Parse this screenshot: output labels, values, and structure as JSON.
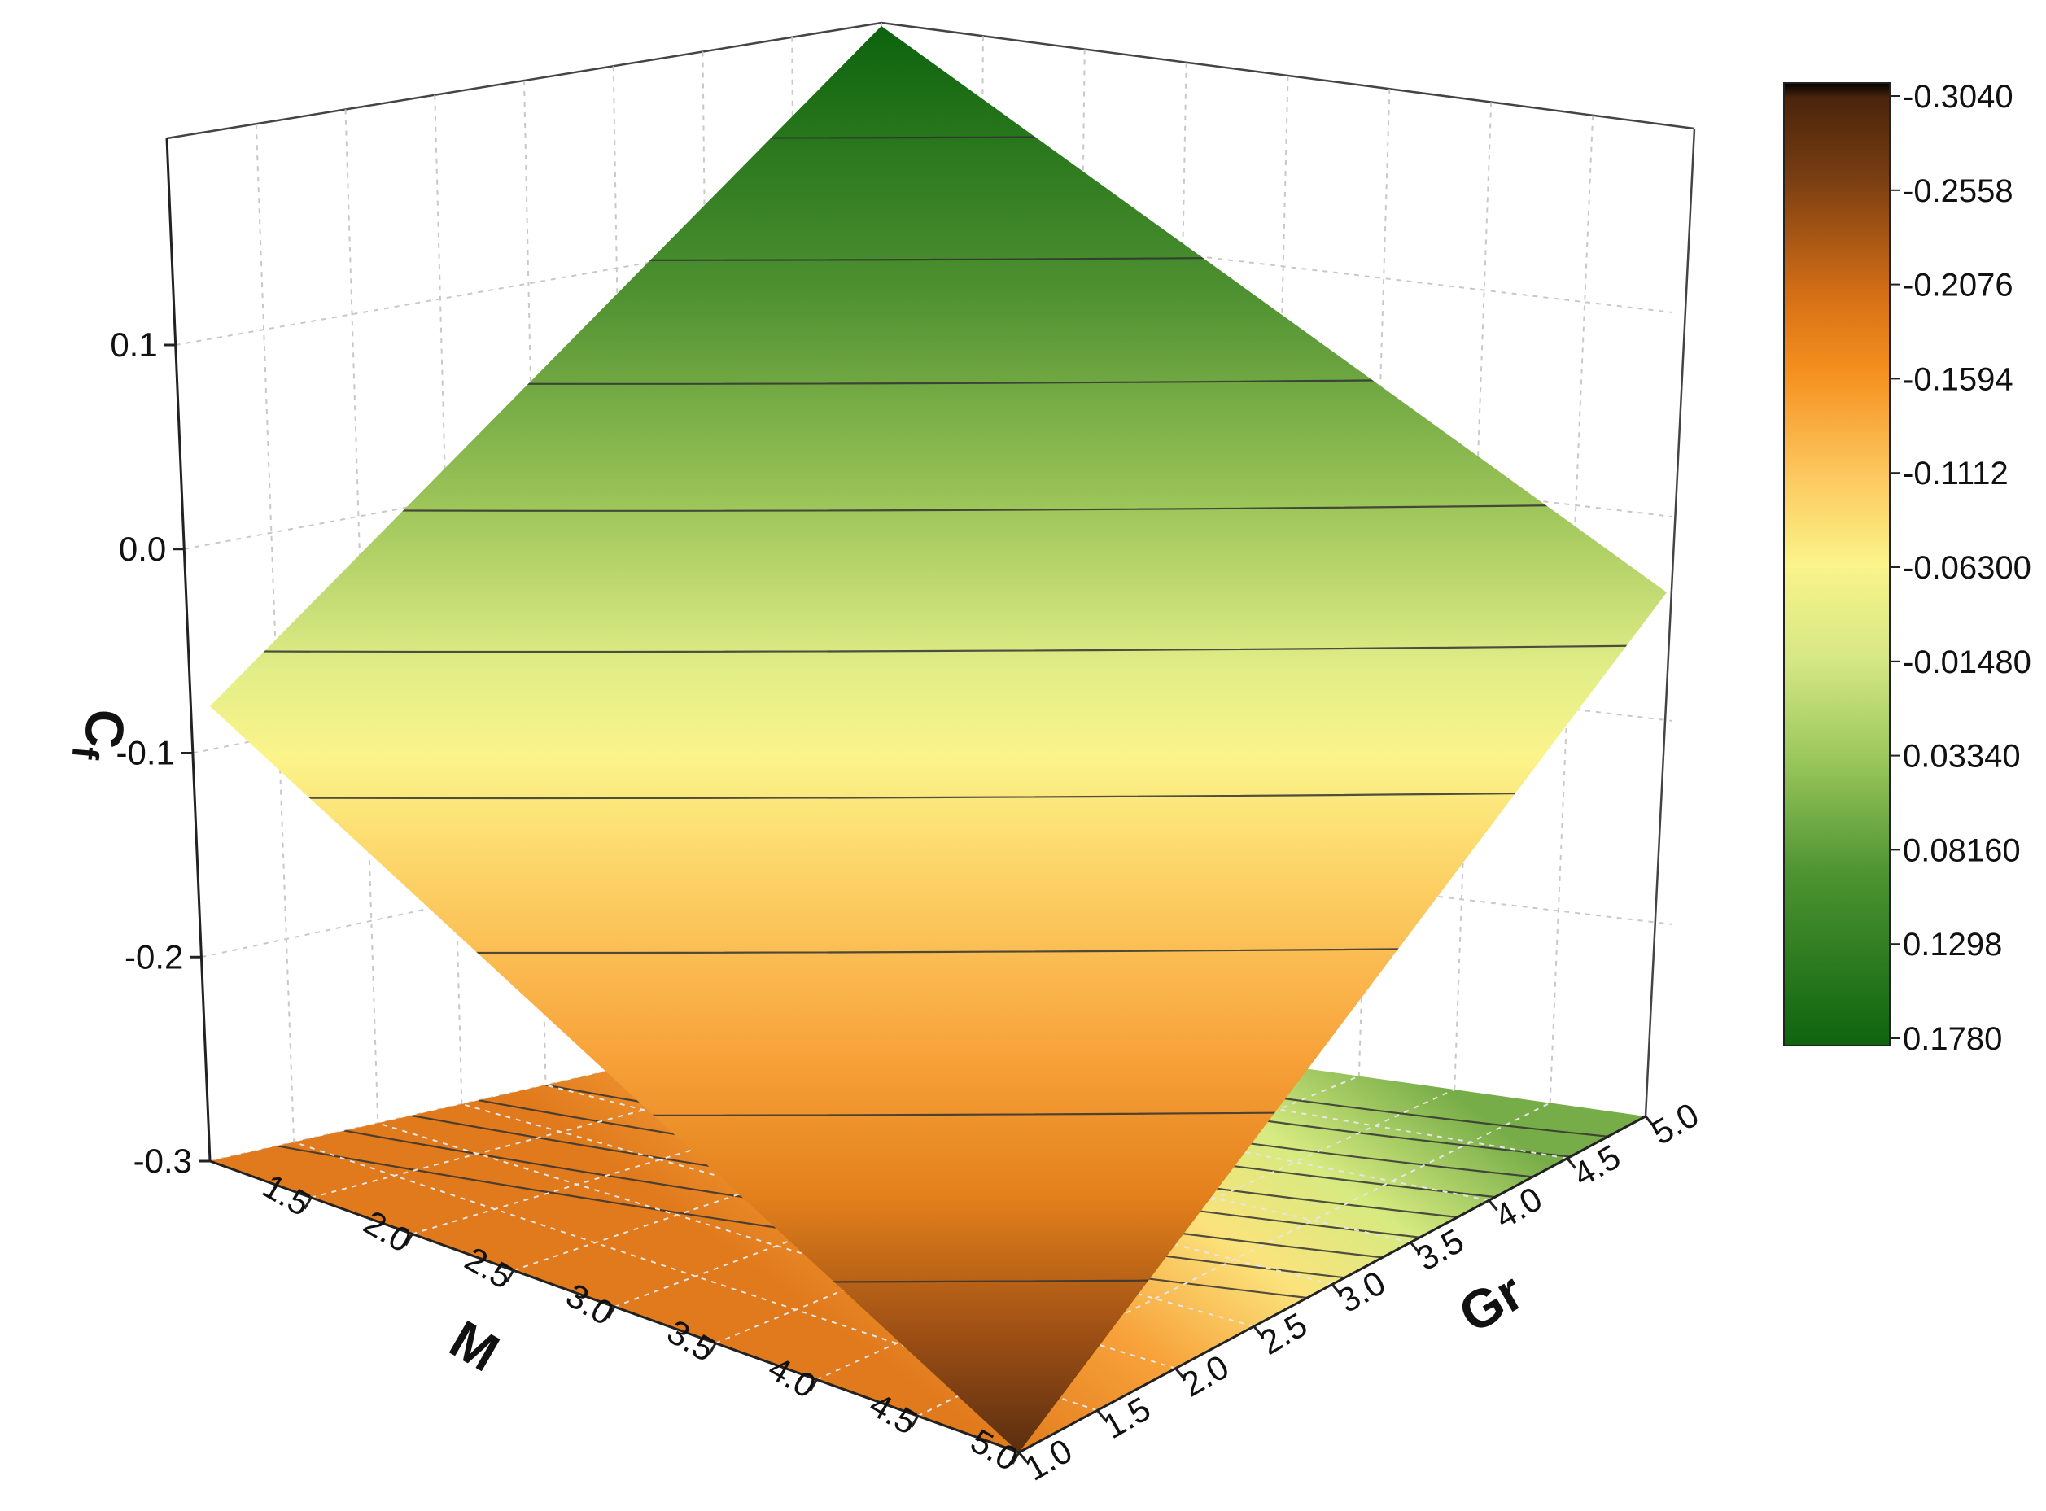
{
  "chart_data": {
    "type": "surface3d",
    "x_axis": {
      "label": "M",
      "ticks": [
        "1.5",
        "2.0",
        "2.5",
        "3.0",
        "3.5",
        "4.0",
        "4.5",
        "5.0"
      ]
    },
    "y_axis": {
      "label": "Gr",
      "ticks": [
        "1.0",
        "1.5",
        "2.0",
        "2.5",
        "3.0",
        "3.5",
        "4.0",
        "4.5",
        "5.0"
      ]
    },
    "z_axis": {
      "label": "C",
      "label_subscript": "f",
      "ticks": [
        "-0.3",
        "-0.2",
        "-0.1",
        "0.0",
        "0.1"
      ],
      "zlim": [
        -0.304,
        0.178
      ]
    },
    "surface": {
      "corners": [
        {
          "M": 5.0,
          "Gr": 1.0,
          "Cf": -0.304
        },
        {
          "M": 1.0,
          "Gr": 1.0,
          "Cf": -0.085
        },
        {
          "M": 5.0,
          "Gr": 5.0,
          "Cf": -0.06
        },
        {
          "M": 1.0,
          "Gr": 5.0,
          "Cf": 0.178
        }
      ]
    },
    "colorbar": {
      "labels": [
        "-0.3040",
        "-0.2558",
        "-0.2076",
        "-0.1594",
        "-0.1112",
        "-0.06300",
        "-0.01480",
        "0.03340",
        "0.08160",
        "0.1298",
        "0.1780"
      ],
      "colors": {
        "top": "#000000",
        "brown": "#5a2e10",
        "orange": "#f08a1c",
        "yellow": "#fbf48a",
        "green_light": "#b5d270",
        "green_dark": "#0e640e"
      }
    },
    "grid": true
  }
}
